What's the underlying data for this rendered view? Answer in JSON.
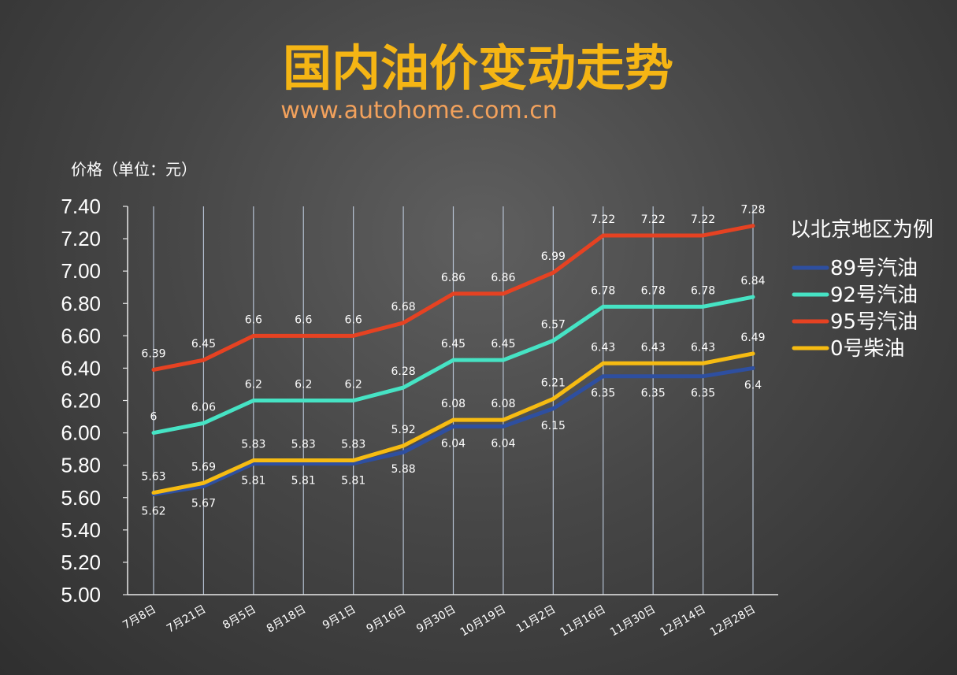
{
  "chart_data": {
    "type": "line",
    "title": "国内油价变动走势",
    "subtitle": "www.autohome.com.cn",
    "ylabel": "价格（单位：元）",
    "ylim": [
      5.0,
      7.4
    ],
    "yticks": [
      "5.00",
      "5.20",
      "5.40",
      "5.60",
      "5.80",
      "6.00",
      "6.20",
      "6.40",
      "6.60",
      "6.80",
      "7.00",
      "7.20",
      "7.40"
    ],
    "categories": [
      "7月8日",
      "7月21日",
      "8月5日",
      "8月18日",
      "9月1日",
      "9月16日",
      "9月30日",
      "10月19日",
      "11月2日",
      "11月16日",
      "11月30日",
      "12月14日",
      "12月28日"
    ],
    "grid": "vertical",
    "legend": {
      "title": "以北京地区为例",
      "placement": "right"
    },
    "series": [
      {
        "name": "89号汽油",
        "color": "#2e4fa0",
        "values": [
          5.62,
          5.67,
          5.81,
          5.81,
          5.81,
          5.88,
          6.04,
          6.04,
          6.15,
          6.35,
          6.35,
          6.35,
          6.4
        ]
      },
      {
        "name": "92号汽油",
        "color": "#46e3c4",
        "values": [
          6.0,
          6.06,
          6.2,
          6.2,
          6.2,
          6.28,
          6.45,
          6.45,
          6.57,
          6.78,
          6.78,
          6.78,
          6.84
        ]
      },
      {
        "name": "95号汽油",
        "color": "#e64222",
        "values": [
          6.39,
          6.45,
          6.6,
          6.6,
          6.6,
          6.68,
          6.86,
          6.86,
          6.99,
          7.22,
          7.22,
          7.22,
          7.28
        ]
      },
      {
        "name": "0号柴油",
        "color": "#f6bb12",
        "values": [
          5.63,
          5.69,
          5.83,
          5.83,
          5.83,
          5.92,
          6.08,
          6.08,
          6.21,
          6.43,
          6.43,
          6.43,
          6.49
        ]
      }
    ]
  }
}
